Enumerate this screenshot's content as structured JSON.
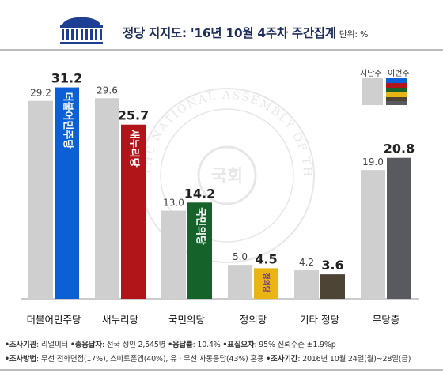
{
  "header": {
    "title": "정당 지지도: '16년 10월 4주차 주간집계",
    "unit": "단위: %"
  },
  "watermark": {
    "text": "THE NATIONAL ASSEMBLY OF THE REPUBLIC OF KOREA",
    "center": "국회"
  },
  "legend": {
    "previous": "지난주",
    "current": "이번주"
  },
  "colors": {
    "prev_bar": "#cfcfcf",
    "title": "#1f2d5a",
    "accent_blue": "#0b60d6"
  },
  "chart_data": {
    "type": "bar",
    "categories": [
      "더불어민주당",
      "새누리당",
      "국민의당",
      "정의당",
      "기타 정당",
      "무당층"
    ],
    "series": [
      {
        "name": "지난주",
        "values": [
          29.2,
          29.6,
          13.0,
          5.0,
          4.2,
          19.0
        ]
      },
      {
        "name": "이번주",
        "values": [
          31.2,
          25.7,
          14.2,
          4.5,
          3.6,
          20.8
        ]
      }
    ],
    "current_colors": [
      "#0b60d6",
      "#b1151a",
      "#15632a",
      "#e9b514",
      "#4d4436",
      "#595a60"
    ],
    "bar_logos": [
      "더불어민주당",
      "새누리당",
      "국민의당",
      "정의당",
      "",
      ""
    ],
    "ylim": [
      0,
      35
    ]
  },
  "footer": {
    "line1": [
      {
        "key": "•조사기관",
        "value": ": 리얼미터"
      },
      {
        "key": "•총응답자",
        "value": ": 전국 성인 2,545명"
      },
      {
        "key": "•응답률",
        "value": ": 10.4%"
      },
      {
        "key": "•표집오차",
        "value": ": 95% 신뢰수준 ±1.9%p"
      }
    ],
    "line2": [
      {
        "key": "•조사방법",
        "value": ": 무선 전화면접(17%), 스마트폰앱(40%), 유 · 무선 자동응답(43%) 혼용"
      },
      {
        "key": "•조사기간",
        "value": ": 2016년 10월 24일(월)~28일(금)"
      }
    ]
  }
}
